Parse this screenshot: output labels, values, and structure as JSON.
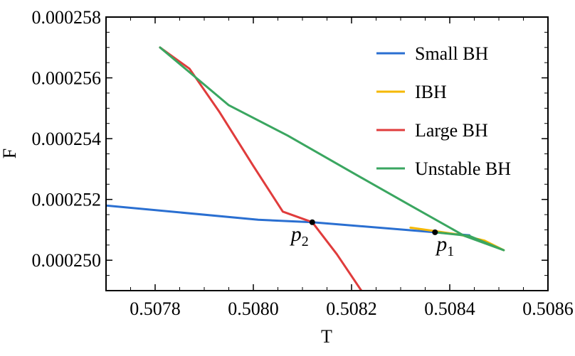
{
  "chart_data": {
    "type": "line",
    "xlabel": "T",
    "ylabel": "F",
    "xlim": [
      0.5077,
      0.5086
    ],
    "ylim": [
      0.000249,
      0.000258
    ],
    "x_ticks": [
      "0.5078",
      "0.5080",
      "0.5082",
      "0.5084",
      "0.5086"
    ],
    "y_ticks": [
      "0.000250",
      "0.000252",
      "0.000254",
      "0.000256",
      "0.000258"
    ],
    "grid": false,
    "legend_position": "top-right",
    "series": [
      {
        "name": "Small BH",
        "color": "#2a6fd1",
        "points": [
          [
            0.5077,
            0.0002518
          ],
          [
            0.50801,
            0.00025133
          ],
          [
            0.50812,
            0.00025125
          ],
          [
            0.50837,
            0.00025092
          ],
          [
            0.50844,
            0.00025082
          ]
        ]
      },
      {
        "name": "IBH",
        "color": "#f5b800",
        "points": [
          [
            0.50832,
            0.00025107
          ],
          [
            0.50837,
            0.00025096
          ],
          [
            0.50842,
            0.00025084
          ],
          [
            0.50847,
            0.00025065
          ],
          [
            0.50851,
            0.00025033
          ]
        ]
      },
      {
        "name": "Large BH",
        "color": "#e03c3c",
        "points": [
          [
            0.50781,
            0.000257
          ],
          [
            0.50787,
            0.0002563
          ],
          [
            0.50793,
            0.0002549
          ],
          [
            0.508,
            0.0002531
          ],
          [
            0.50806,
            0.0002516
          ],
          [
            0.50812,
            0.00025125
          ],
          [
            0.50817,
            0.0002502
          ],
          [
            0.50822,
            0.000249
          ]
        ]
      },
      {
        "name": "Unstable BH",
        "color": "#3aa660",
        "points": [
          [
            0.50781,
            0.000257
          ],
          [
            0.50795,
            0.0002551
          ],
          [
            0.50807,
            0.0002541
          ],
          [
            0.5082,
            0.0002529
          ],
          [
            0.50832,
            0.0002518
          ],
          [
            0.50843,
            0.0002508
          ],
          [
            0.50851,
            0.00025033
          ],
          [
            0.50844,
            0.0002508
          ],
          [
            0.50837,
            0.00025092
          ]
        ]
      }
    ],
    "annotations": [
      {
        "label": "p",
        "subscript": "2",
        "x": 0.50812,
        "y": 0.00025125,
        "label_side": "lower-left"
      },
      {
        "label": "p",
        "subscript": "1",
        "x": 0.50837,
        "y": 0.00025092,
        "label_side": "lower-right"
      }
    ]
  }
}
